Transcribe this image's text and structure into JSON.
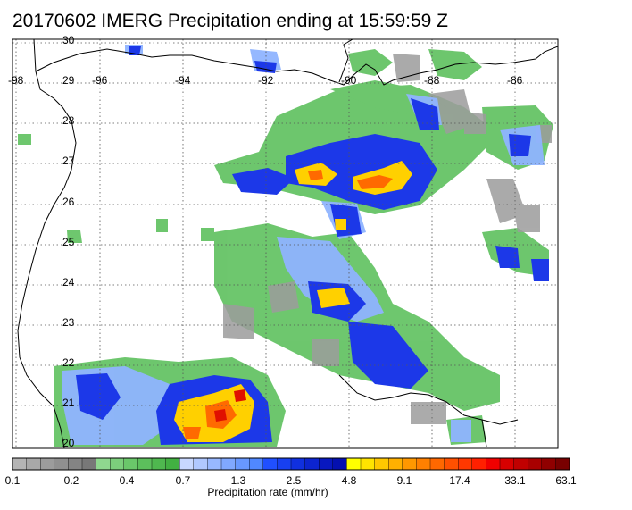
{
  "title": "20170602 IMERG Precipitation ending at 15:59:59 Z",
  "map": {
    "lat_labels": [
      "30",
      "29",
      "28",
      "27",
      "26",
      "25",
      "24",
      "23",
      "22",
      "21",
      "20"
    ],
    "lon_labels": [
      "-98",
      "-96",
      "-94",
      "-92",
      "-90",
      "-88",
      "-86"
    ],
    "lat_range": [
      20,
      30
    ],
    "lon_range": [
      -98,
      -85
    ],
    "gridlines": "dotted"
  },
  "colorbar": {
    "tick_labels": [
      "0.1",
      "0.2",
      "0.4",
      "0.7",
      "1.3",
      "2.5",
      "4.8",
      "9.1",
      "17.4",
      "33.1",
      "63.1"
    ],
    "title": "Precipitation rate (mm/hr)",
    "colors": [
      "#b4b4b4",
      "#a8a8a8",
      "#9c9c9c",
      "#909090",
      "#848484",
      "#787878",
      "#8fd88f",
      "#7ccf7c",
      "#6ac76a",
      "#5cbf5c",
      "#4fb84f",
      "#42b042",
      "#c8d8ff",
      "#b0c8ff",
      "#98b8ff",
      "#80a8ff",
      "#6898ff",
      "#5088ff",
      "#2050ff",
      "#1840f0",
      "#1030e0",
      "#0c24d0",
      "#0818c0",
      "#0410b0",
      "#ffff00",
      "#ffe400",
      "#ffc800",
      "#ffb000",
      "#ff9800",
      "#ff8000",
      "#ff6800",
      "#ff5000",
      "#ff3800",
      "#ff2000",
      "#f00000",
      "#d80000",
      "#c00000",
      "#a80000",
      "#900000",
      "#780000"
    ]
  }
}
